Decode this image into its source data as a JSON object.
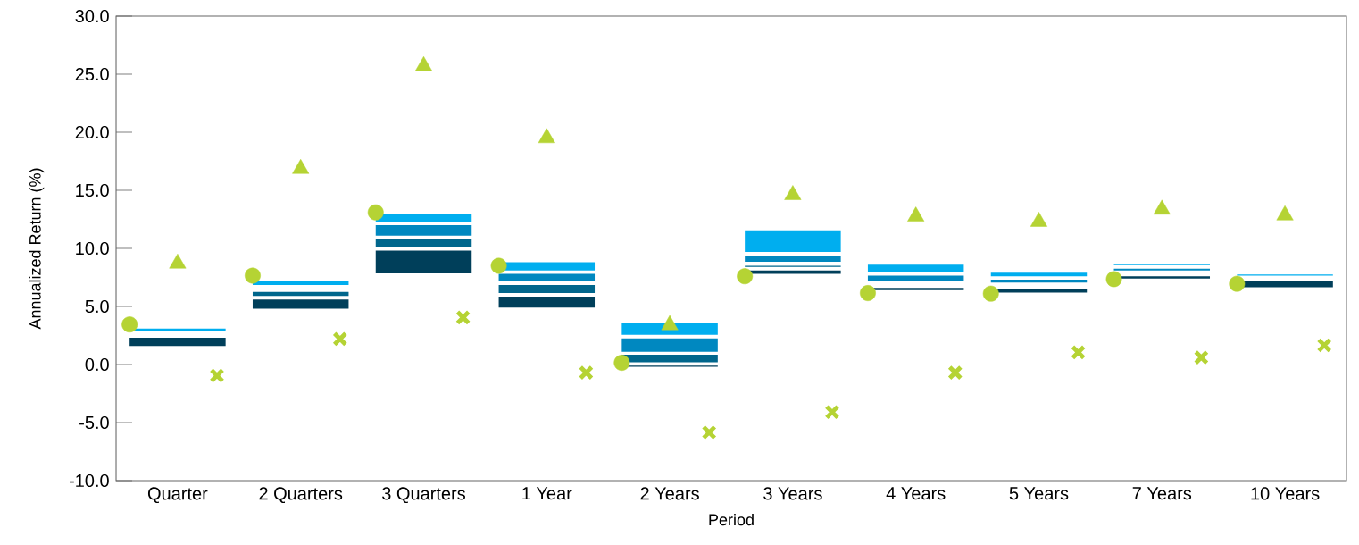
{
  "chart_data": {
    "type": "bar",
    "xlabel": "Period",
    "ylabel": "Annualized Return (%)",
    "categories": [
      "Quarter",
      "2 Quarters",
      "3 Quarters",
      "1 Year",
      "2 Years",
      "3 Years",
      "4 Years",
      "5 Years",
      "7 Years",
      "10 Years"
    ],
    "series": [
      {
        "type": "bar",
        "color": "#003f5a",
        "base": [
          1.6,
          4.8,
          7.85,
          4.9,
          -0.2,
          7.8,
          6.4,
          6.2,
          7.4,
          6.65
        ],
        "values": [
          0.7,
          0.8,
          1.95,
          0.95,
          0.1,
          0.3,
          0.2,
          0.3,
          0.2,
          0.55
        ]
      },
      {
        "type": "bar",
        "color": "#00668c",
        "base": [
          null,
          5.9,
          10.15,
          6.15,
          0.2,
          8.4,
          null,
          null,
          null,
          null
        ],
        "values": [
          null,
          0.35,
          0.7,
          0.7,
          0.65,
          0.1,
          null,
          null,
          null,
          null
        ]
      },
      {
        "type": "bar",
        "color": "#0088c0",
        "base": [
          null,
          null,
          11.1,
          7.2,
          1.1,
          8.85,
          7.2,
          7.05,
          8.1,
          null
        ],
        "values": [
          null,
          null,
          0.9,
          0.6,
          1.15,
          0.45,
          0.45,
          0.25,
          0.15,
          null
        ]
      },
      {
        "type": "bar",
        "color": "#00aeef",
        "base": [
          2.85,
          6.85,
          12.3,
          8.1,
          2.55,
          9.7,
          8.0,
          7.6,
          8.55,
          7.65
        ],
        "values": [
          0.25,
          0.35,
          0.7,
          0.7,
          1.0,
          1.85,
          0.6,
          0.3,
          0.15,
          0.1
        ]
      },
      {
        "type": "scatter",
        "marker": "circle",
        "color": "#b5d334",
        "x": [
          "Quarter",
          "2 Quarters",
          "3 Quarters",
          "1 Year",
          "2 Years",
          "3 Years",
          "4 Years",
          "5 Years",
          "7 Years",
          "10 Years"
        ],
        "values": [
          3.45,
          7.65,
          13.1,
          8.5,
          0.15,
          7.6,
          6.15,
          6.1,
          7.35,
          6.95
        ]
      },
      {
        "type": "scatter",
        "marker": "triangle",
        "color": "#b5d334",
        "x": [
          "Quarter",
          "2 Quarters",
          "3 Quarters",
          "1 Year",
          "2 Years",
          "3 Years",
          "4 Years",
          "5 Years",
          "7 Years",
          "10 Years"
        ],
        "values": [
          8.7,
          16.85,
          25.7,
          19.5,
          3.4,
          14.6,
          12.75,
          12.3,
          13.35,
          12.85
        ]
      },
      {
        "type": "scatter",
        "marker": "cross",
        "color": "#b5d334",
        "x": [
          "Quarter",
          "2 Quarters",
          "3 Quarters",
          "1 Year",
          "2 Years",
          "3 Years",
          "4 Years",
          "5 Years",
          "7 Years",
          "10 Years"
        ],
        "values": [
          -0.95,
          2.2,
          4.05,
          -0.7,
          -5.85,
          -4.1,
          -0.7,
          1.05,
          0.6,
          1.65
        ]
      }
    ],
    "ylim": [
      -10,
      30
    ],
    "yticks": [
      {
        "value": -10,
        "label": "-10.0"
      },
      {
        "value": -5,
        "label": "-5.0"
      },
      {
        "value": 0,
        "label": "0.0"
      },
      {
        "value": 5,
        "label": "5.0"
      },
      {
        "value": 10,
        "label": "10.0"
      },
      {
        "value": 15,
        "label": "15.0"
      },
      {
        "value": 20,
        "label": "20.0"
      },
      {
        "value": 25,
        "label": "25.0"
      },
      {
        "value": 30,
        "label": "30.0"
      }
    ]
  }
}
